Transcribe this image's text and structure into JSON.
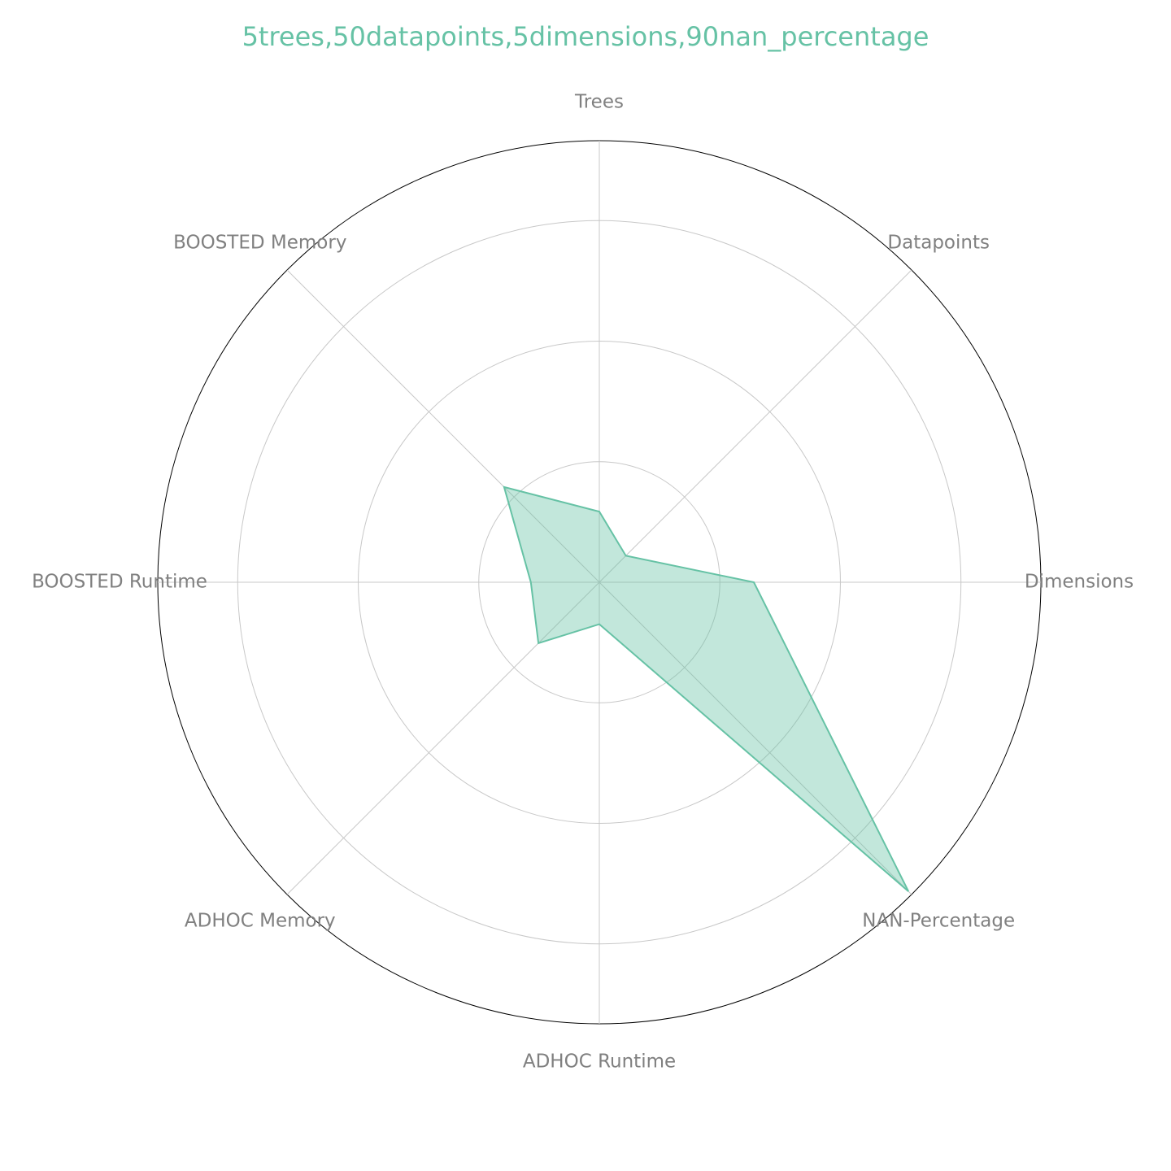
{
  "chart_data": {
    "type": "radar",
    "title": "5trees,50datapoints,5dimensions,90nan_percentage",
    "axes": [
      "Trees",
      "Datapoints",
      "Dimensions",
      "NAN-Percentage",
      "ADHOC Runtime",
      "ADHOC Memory",
      "BOOSTED Runtime",
      "BOOSTED Memory"
    ],
    "values": [
      0.16,
      0.085,
      0.35,
      0.99,
      0.095,
      0.195,
      0.155,
      0.305
    ],
    "rlim": [
      0,
      1
    ],
    "grid": true,
    "color": "#66c2a5",
    "fill_opacity": 0.4
  }
}
